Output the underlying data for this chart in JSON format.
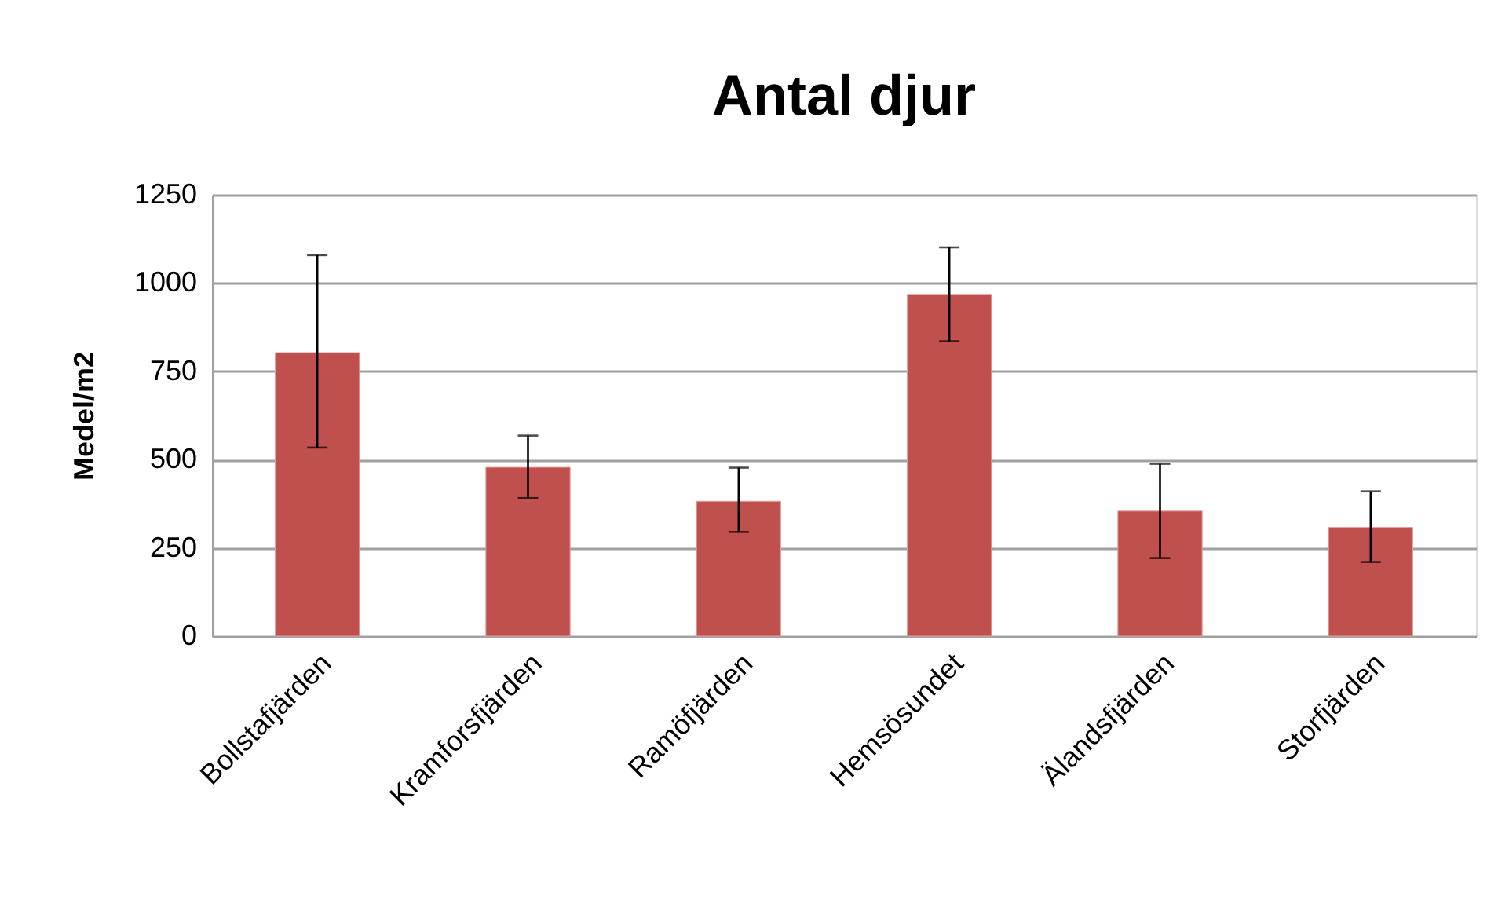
{
  "chart_data": {
    "type": "bar",
    "title": "Antal djur",
    "ylabel": "Medel/m2",
    "categories": [
      "Bollstafjärden",
      "Kramforsfjärden",
      "Ramöfjärden",
      "Hemsösundet",
      "Älandsfjärden",
      "Storfjärden"
    ],
    "values": [
      803,
      478,
      382,
      968,
      354,
      308
    ],
    "errors": [
      [
        534,
        1079
      ],
      [
        391,
        568
      ],
      [
        295,
        477
      ],
      [
        835,
        1101
      ],
      [
        221,
        488
      ],
      [
        210,
        410
      ]
    ],
    "color": "#c0504d",
    "ylim": [
      0,
      1250
    ],
    "yticks": [
      0,
      250,
      500,
      750,
      1000,
      1250
    ],
    "grid": "y"
  }
}
